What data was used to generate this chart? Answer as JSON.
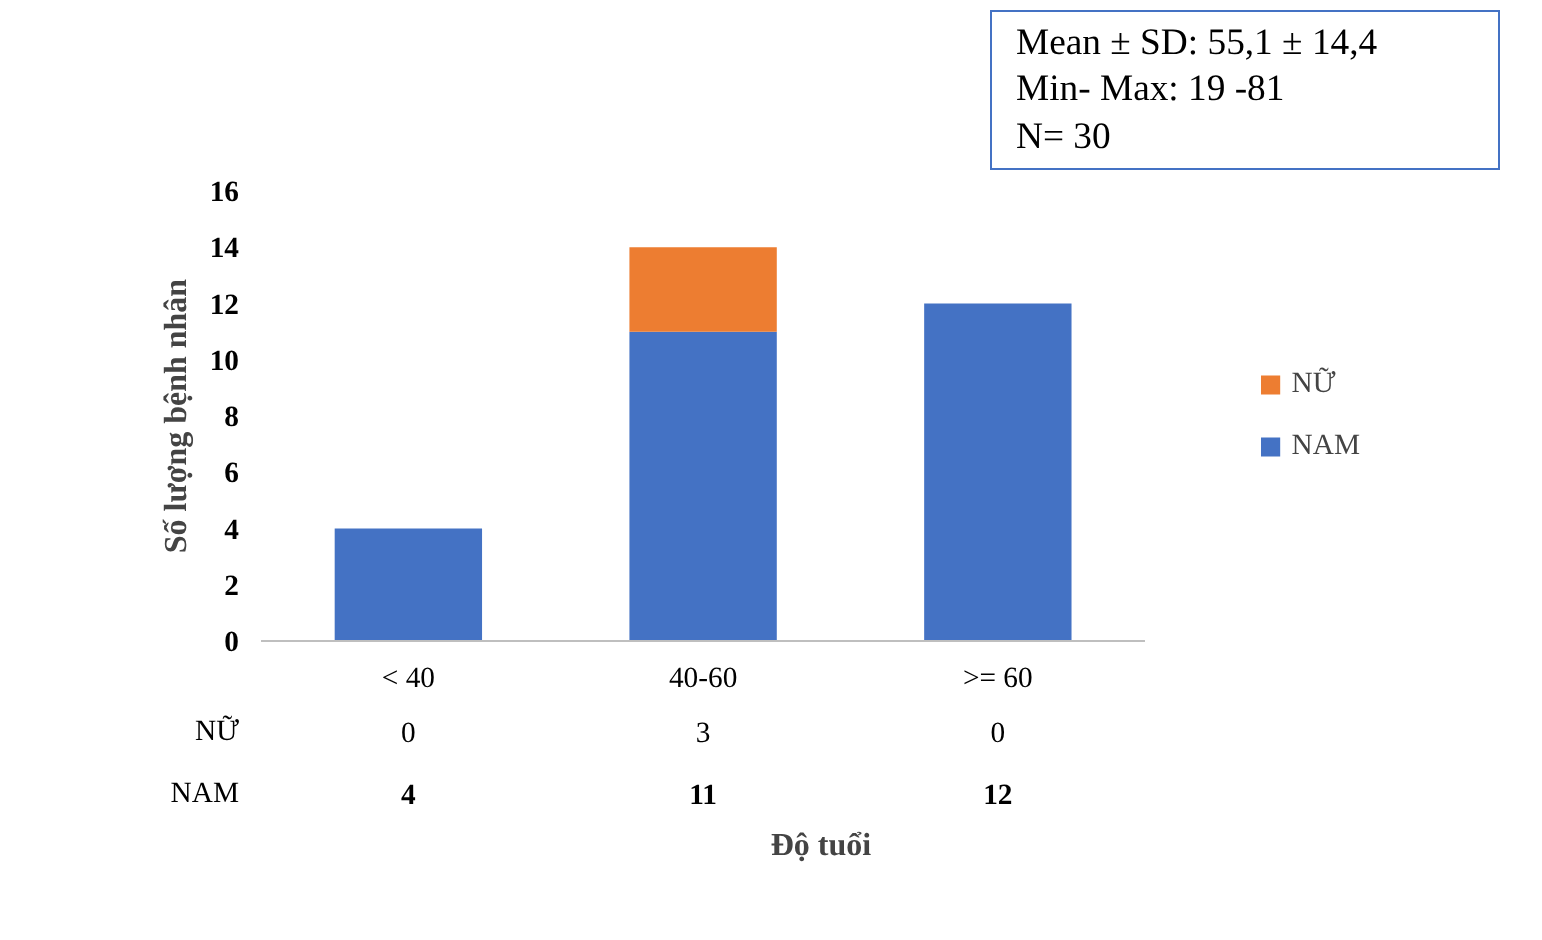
{
  "chart_data": {
    "type": "bar",
    "stacked": true,
    "categories": [
      "< 40",
      "40-60",
      ">= 60"
    ],
    "series": [
      {
        "name": "NAM",
        "color": "#4472c4",
        "values": [
          4,
          11,
          12
        ]
      },
      {
        "name": "NỮ",
        "color": "#ed7d31",
        "values": [
          0,
          3,
          0
        ]
      }
    ],
    "ylim": [
      0,
      16
    ],
    "yticks": [
      0,
      2,
      4,
      6,
      8,
      10,
      12,
      14,
      16
    ],
    "ylabel": "Số lượng bệnh nhân",
    "xlabel": "Độ tuổi",
    "grid": false,
    "legend": "right",
    "data_labels": true,
    "annotations": [
      "Mean  ± SD: 55,1 ± 14,4\nMin- Max: 19 -81\nN= 30"
    ]
  }
}
